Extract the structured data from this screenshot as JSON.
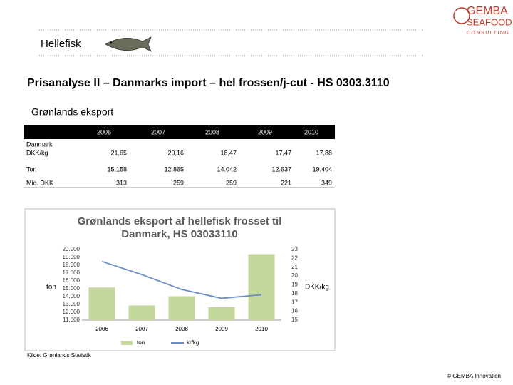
{
  "topic": "Hellefisk",
  "logo": {
    "name": "GEMBA",
    "sub": "SEAFOOD",
    "tag": "CONSULTING"
  },
  "title": "Prisanalyse II – Danmarks import – hel frossen/j-cut - HS 0303.3110",
  "subtitle": "Grønlands eksport",
  "table": {
    "header": [
      "2006",
      "2007",
      "2008",
      "2009",
      "2010"
    ],
    "rows": [
      {
        "label": [
          "Danmark",
          "DKK/kg"
        ],
        "values": [
          "21,65",
          "20,16",
          "18,47",
          "17,47",
          "17,88"
        ]
      },
      {
        "label": [
          "Ton"
        ],
        "values": [
          "15.158",
          "12.865",
          "14.042",
          "12.637",
          "19.404"
        ]
      },
      {
        "label": [
          "Mio. DKK"
        ],
        "values": [
          "313",
          "259",
          "259",
          "221",
          "349"
        ]
      }
    ]
  },
  "chart_data": {
    "type": "bar_line",
    "title": [
      "Grønlands eksport af hellefisk frosset til",
      "Danmark, HS 03033110"
    ],
    "ylabel": "ton",
    "y2label": "DKK/kg",
    "categories": [
      "2006",
      "2007",
      "2008",
      "2009",
      "2010"
    ],
    "series": [
      {
        "name": "ton",
        "type": "bar",
        "color": "#c3d69b",
        "values": [
          15158,
          12865,
          14042,
          12637,
          19404
        ]
      },
      {
        "name": "kr/kg",
        "type": "line",
        "axis": "y2",
        "color": "#6a8fc4",
        "values": [
          21.65,
          20.16,
          18.47,
          17.47,
          17.88
        ]
      }
    ],
    "ylim": [
      11000,
      20000
    ],
    "yticks": [
      {
        "value": 11000,
        "label": "11.000"
      },
      {
        "value": 12000,
        "label": "12.000"
      },
      {
        "value": 13000,
        "label": "13.000"
      },
      {
        "value": 14000,
        "label": "14.000"
      },
      {
        "value": 15000,
        "label": "15.000"
      },
      {
        "value": 16000,
        "label": "16.000"
      },
      {
        "value": 17000,
        "label": "17.000"
      },
      {
        "value": 18000,
        "label": "18.000"
      },
      {
        "value": 19000,
        "label": "19.000"
      },
      {
        "value": 20000,
        "label": "20.000"
      }
    ],
    "y2lim": [
      15,
      23
    ],
    "y2ticks": [
      15,
      16,
      17,
      18,
      19,
      20,
      21,
      22,
      23
    ],
    "grid": false,
    "legend": "bottom"
  },
  "source": "Kilde: Grønlands Statistik",
  "footer": "© GEMBA Innovation"
}
